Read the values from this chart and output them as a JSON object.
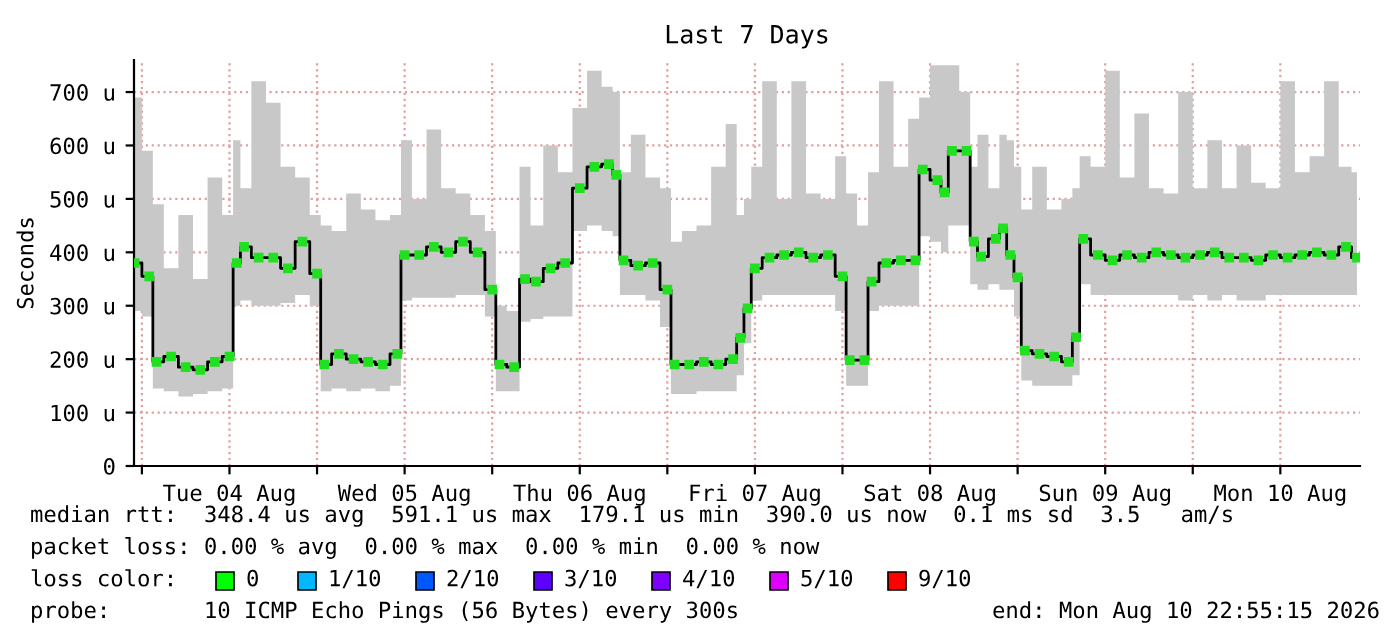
{
  "chart_data": {
    "type": "step",
    "title": "Last 7 Days",
    "ylabel": "Seconds",
    "x": [
      "2026-08-03T23:00",
      "2026-08-04T01:00",
      "2026-08-04T02:00",
      "2026-08-04T04:00",
      "2026-08-04T06:00",
      "2026-08-04T08:00",
      "2026-08-04T10:00",
      "2026-08-04T12:00",
      "2026-08-04T13:00",
      "2026-08-04T14:00",
      "2026-08-04T16:00",
      "2026-08-04T18:00",
      "2026-08-04T20:00",
      "2026-08-04T22:00",
      "2026-08-05T00:00",
      "2026-08-05T01:00",
      "2026-08-05T03:00",
      "2026-08-05T05:00",
      "2026-08-05T07:00",
      "2026-08-05T09:00",
      "2026-08-05T11:00",
      "2026-08-05T12:00",
      "2026-08-05T14:00",
      "2026-08-05T16:00",
      "2026-08-05T18:00",
      "2026-08-05T20:00",
      "2026-08-05T22:00",
      "2026-08-06T00:00",
      "2026-08-06T01:00",
      "2026-08-06T03:00",
      "2026-08-06T04:30",
      "2026-08-06T06:00",
      "2026-08-06T08:00",
      "2026-08-06T10:00",
      "2026-08-06T12:00",
      "2026-08-06T14:00",
      "2026-08-06T16:00",
      "2026-08-06T17:00",
      "2026-08-06T18:00",
      "2026-08-06T20:00",
      "2026-08-06T22:00",
      "2026-08-07T00:00",
      "2026-08-07T01:00",
      "2026-08-07T03:00",
      "2026-08-07T05:00",
      "2026-08-07T07:00",
      "2026-08-07T09:00",
      "2026-08-07T10:00",
      "2026-08-07T11:00",
      "2026-08-07T12:00",
      "2026-08-07T14:00",
      "2026-08-07T16:00",
      "2026-08-07T18:00",
      "2026-08-07T20:00",
      "2026-08-07T22:00",
      "2026-08-08T00:00",
      "2026-08-08T01:00",
      "2026-08-08T03:00",
      "2026-08-08T04:00",
      "2026-08-08T06:00",
      "2026-08-08T08:00",
      "2026-08-08T10:00",
      "2026-08-08T11:00",
      "2026-08-08T13:00",
      "2026-08-08T14:00",
      "2026-08-08T15:00",
      "2026-08-08T17:00",
      "2026-08-08T18:00",
      "2026-08-08T19:00",
      "2026-08-08T21:00",
      "2026-08-08T22:00",
      "2026-08-08T23:00",
      "2026-08-09T00:00",
      "2026-08-09T01:00",
      "2026-08-09T03:00",
      "2026-08-09T05:00",
      "2026-08-09T07:00",
      "2026-08-09T08:00",
      "2026-08-09T09:00",
      "2026-08-09T11:00",
      "2026-08-09T13:00",
      "2026-08-09T15:00",
      "2026-08-09T17:00",
      "2026-08-09T19:00",
      "2026-08-09T21:00",
      "2026-08-09T23:00",
      "2026-08-10T01:00",
      "2026-08-10T03:00",
      "2026-08-10T05:00",
      "2026-08-10T07:00",
      "2026-08-10T09:00",
      "2026-08-10T11:00",
      "2026-08-10T13:00",
      "2026-08-10T15:00",
      "2026-08-10T17:00",
      "2026-08-10T19:00",
      "2026-08-10T21:00",
      "2026-08-10T22:30"
    ],
    "series": [
      {
        "color": "#20e020",
        "values": [
          380,
          355,
          195,
          205,
          185,
          180,
          195,
          205,
          380,
          410,
          390,
          390,
          370,
          420,
          360,
          190,
          210,
          200,
          195,
          190,
          210,
          395,
          395,
          410,
          400,
          420,
          400,
          330,
          190,
          185,
          350,
          345,
          370,
          380,
          520,
          560,
          565,
          545,
          385,
          375,
          380,
          330,
          190,
          190,
          195,
          190,
          200,
          240,
          295,
          370,
          390,
          395,
          400,
          390,
          395,
          355,
          198,
          198,
          345,
          380,
          385,
          385,
          555,
          535,
          512,
          590,
          590,
          420,
          392,
          425,
          445,
          395,
          353,
          216,
          210,
          205,
          195,
          241,
          425,
          395,
          385,
          395,
          390,
          400,
          395,
          390,
          395,
          400,
          390,
          390,
          385,
          395,
          390,
          395,
          400,
          395,
          410,
          390
        ],
        "lower": [
          290,
          280,
          145,
          140,
          130,
          135,
          140,
          145,
          300,
          310,
          300,
          300,
          305,
          320,
          300,
          140,
          145,
          140,
          145,
          140,
          150,
          310,
          315,
          315,
          315,
          320,
          320,
          280,
          140,
          140,
          270,
          275,
          280,
          280,
          440,
          450,
          440,
          430,
          320,
          320,
          310,
          260,
          135,
          135,
          140,
          140,
          140,
          170,
          230,
          310,
          320,
          320,
          320,
          320,
          320,
          290,
          150,
          150,
          290,
          300,
          300,
          300,
          430,
          420,
          400,
          450,
          450,
          340,
          330,
          340,
          330,
          330,
          280,
          160,
          150,
          150,
          150,
          170,
          340,
          320,
          320,
          320,
          320,
          320,
          320,
          310,
          320,
          310,
          320,
          310,
          310,
          320,
          320,
          320,
          320,
          320,
          320,
          320
        ],
        "upper": [
          690,
          590,
          490,
          370,
          470,
          350,
          540,
          470,
          610,
          520,
          720,
          680,
          560,
          540,
          470,
          450,
          440,
          510,
          480,
          460,
          470,
          610,
          500,
          630,
          520,
          510,
          470,
          440,
          300,
          290,
          560,
          450,
          600,
          550,
          670,
          740,
          710,
          700,
          550,
          620,
          540,
          520,
          420,
          440,
          450,
          560,
          640,
          470,
          500,
          560,
          720,
          500,
          720,
          510,
          500,
          580,
          510,
          450,
          550,
          720,
          560,
          650,
          690,
          750,
          750,
          750,
          700,
          560,
          620,
          520,
          620,
          610,
          560,
          480,
          560,
          480,
          500,
          520,
          580,
          560,
          740,
          540,
          660,
          520,
          510,
          700,
          520,
          610,
          520,
          600,
          530,
          520,
          720,
          550,
          580,
          720,
          560,
          550
        ]
      }
    ],
    "xlim": [
      "2026-08-03T22:55",
      "2026-08-10T22:55"
    ],
    "xticks": [
      {
        "value": "2026-08-04T00:00",
        "label": null
      },
      {
        "value": "2026-08-04T12:00",
        "label": "Tue 04 Aug"
      },
      {
        "value": "2026-08-05T00:00",
        "label": null
      },
      {
        "value": "2026-08-05T12:00",
        "label": "Wed 05 Aug"
      },
      {
        "value": "2026-08-06T00:00",
        "label": null
      },
      {
        "value": "2026-08-06T12:00",
        "label": "Thu 06 Aug"
      },
      {
        "value": "2026-08-07T00:00",
        "label": null
      },
      {
        "value": "2026-08-07T12:00",
        "label": "Fri 07 Aug"
      },
      {
        "value": "2026-08-08T00:00",
        "label": null
      },
      {
        "value": "2026-08-08T12:00",
        "label": "Sat 08 Aug"
      },
      {
        "value": "2026-08-09T00:00",
        "label": null
      },
      {
        "value": "2026-08-09T12:00",
        "label": "Sun 09 Aug"
      },
      {
        "value": "2026-08-10T00:00",
        "label": null
      },
      {
        "value": "2026-08-10T12:00",
        "label": "Mon 10 Aug"
      }
    ],
    "ylim": [
      0,
      760
    ],
    "yticks": [
      0,
      {
        "value": 100,
        "label": "100 u"
      },
      {
        "value": 200,
        "label": "200 u"
      },
      {
        "value": 300,
        "label": "300 u"
      },
      {
        "value": 400,
        "label": "400 u"
      },
      {
        "value": 500,
        "label": "500 u"
      },
      {
        "value": 600,
        "label": "600 u"
      },
      {
        "value": 700,
        "label": "700 u"
      }
    ],
    "grid": true,
    "marker": "square",
    "legend": false,
    "annotations": [
      "median rtt:  348.4 us avg  591.1 us max  179.1 us min  390.0 us now  0.1 ms sd  3.5   am/s",
      "packet loss: 0.00 % avg  0.00 % max  0.00 % min  0.00 % now",
      "loss color:",
      "0",
      "1/10",
      "2/10",
      "3/10",
      "4/10",
      "5/10",
      "9/10",
      "probe:       10 ICMP Echo Pings (56 Bytes) every 300s",
      "end: Mon Aug 10 22:55:15 2026"
    ]
  }
}
